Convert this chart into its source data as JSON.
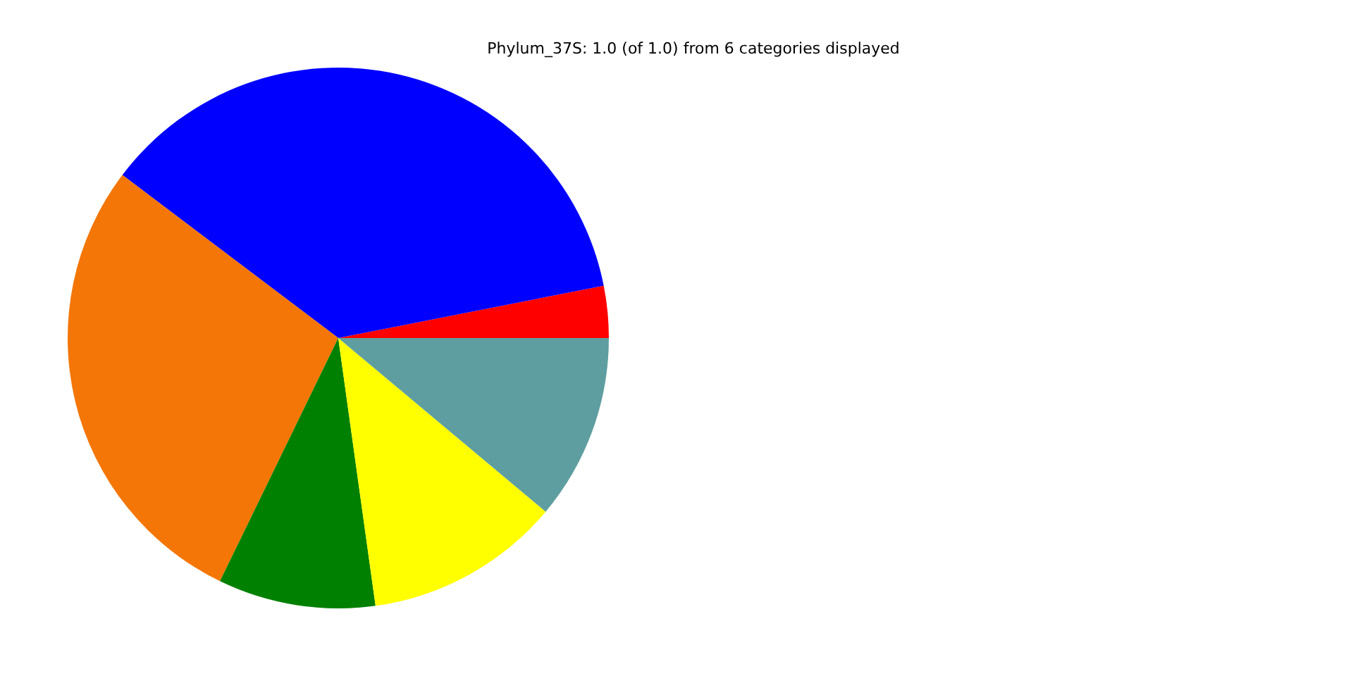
{
  "chart_data": {
    "type": "pie",
    "title": "Phylum_37S: 1.0 (of 1.0) from 6 categories displayed",
    "categories": [
      null,
      null,
      null,
      null,
      null,
      null
    ],
    "values": [
      3.1,
      36.6,
      28.1,
      9.4,
      11.7,
      11.1
    ],
    "colors": [
      "#ff0000",
      "#0000ff",
      "#f37606",
      "#008000",
      "#ffff00",
      "#5f9ea0"
    ],
    "legend": false
  }
}
